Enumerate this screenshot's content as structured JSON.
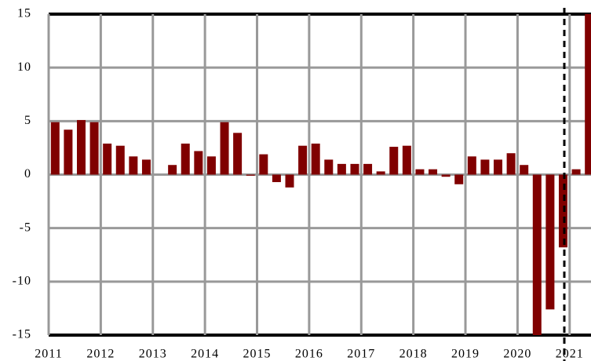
{
  "chart_data": {
    "type": "bar",
    "x": [
      2011.125,
      2011.375,
      2011.625,
      2011.875,
      2012.125,
      2012.375,
      2012.625,
      2012.875,
      2013.125,
      2013.375,
      2013.625,
      2013.875,
      2014.125,
      2014.375,
      2014.625,
      2014.875,
      2015.125,
      2015.375,
      2015.625,
      2015.875,
      2016.125,
      2016.375,
      2016.625,
      2016.875,
      2017.125,
      2017.375,
      2017.625,
      2017.875,
      2018.125,
      2018.375,
      2018.625,
      2018.875,
      2019.125,
      2019.375,
      2019.625,
      2019.875,
      2020.125,
      2020.375,
      2020.625,
      2020.875,
      2021.125,
      2021.375
    ],
    "values": [
      4.9,
      4.2,
      5.1,
      4.9,
      2.9,
      2.7,
      1.7,
      1.4,
      0,
      0.9,
      2.9,
      2.2,
      1.7,
      4.9,
      3.9,
      -0.1,
      1.9,
      -0.7,
      -1.2,
      2.7,
      2.9,
      1.4,
      1.0,
      1.0,
      1.0,
      0.3,
      2.6,
      2.7,
      0.5,
      0.5,
      -0.2,
      -0.9,
      1.7,
      1.4,
      1.4,
      2.0,
      0.9,
      -15.2,
      -12.6,
      -6.8,
      0.5,
      15
    ],
    "color": "#800000",
    "xlim": [
      2011,
      2021.41
    ],
    "xticks": [
      2011,
      2012,
      2013,
      2014,
      2015,
      2016,
      2017,
      2018,
      2019,
      2020,
      2021
    ],
    "ylim": [
      -15,
      15
    ],
    "yticks": [
      15,
      10,
      5,
      0,
      -5,
      -10,
      -15
    ],
    "grid": true
  }
}
